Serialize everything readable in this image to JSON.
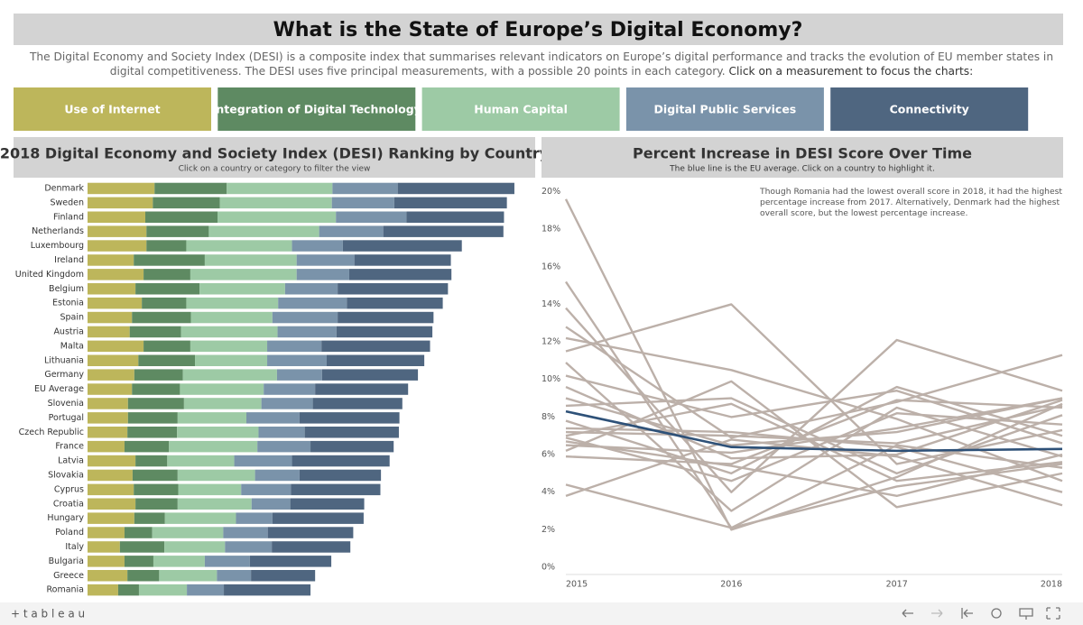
{
  "header": {
    "title": "What is the State of Europe’s Digital Economy?",
    "description": "The Digital Economy and Society Index (DESI) is a composite index that summarises relevant indicators on Europe’s digital performance and tracks the evolution of EU member states in digital competitiveness. The DESI uses five principal measurements, with a possible 20 points in each category.",
    "instruction": "Click on a measurement to focus the charts:"
  },
  "chart_data": [
    {
      "type": "bar",
      "orientation": "horizontal",
      "stacked": true,
      "title": "2018 Digital Economy and Society Index (DESI) Ranking by Country",
      "subtitle": "Click on a country or category to filter the view",
      "xlim": [
        0,
        80
      ],
      "categories": [
        "Denmark",
        "Sweden",
        "Finland",
        "Netherlands",
        "Luxembourg",
        "Ireland",
        "United Kingdom",
        "Belgium",
        "Estonia",
        "Spain",
        "Austria",
        "Malta",
        "Lithuania",
        "Germany",
        "EU Average",
        "Slovenia",
        "Portugal",
        "Czech Republic",
        "France",
        "Latvia",
        "Slovakia",
        "Cyprus",
        "Croatia",
        "Hungary",
        "Poland",
        "Italy",
        "Bulgaria",
        "Greece",
        "Romania"
      ],
      "series": [
        {
          "name": "Use of Internet",
          "color": "#bdb65b",
          "values": [
            11.6,
            11.3,
            10.0,
            10.2,
            10.2,
            8.0,
            9.7,
            8.3,
            9.4,
            7.7,
            7.3,
            9.7,
            8.8,
            8.1,
            7.7,
            7.0,
            7.0,
            6.9,
            6.4,
            8.3,
            7.8,
            8.0,
            8.3,
            8.1,
            6.4,
            5.6,
            6.4,
            6.9,
            5.3
          ]
        },
        {
          "name": "Integration of Digital Technology",
          "color": "#5e8a62",
          "values": [
            12.5,
            11.6,
            12.5,
            10.8,
            6.9,
            12.3,
            8.1,
            11.1,
            7.7,
            10.2,
            8.9,
            8.1,
            9.8,
            8.4,
            8.3,
            9.7,
            8.6,
            8.6,
            7.7,
            5.5,
            7.8,
            7.7,
            7.3,
            5.3,
            4.8,
            7.7,
            5.0,
            5.5,
            3.6
          ]
        },
        {
          "name": "Human Capital",
          "color": "#9dcaa5",
          "values": [
            18.3,
            19.4,
            20.5,
            19.1,
            18.3,
            15.9,
            18.4,
            14.8,
            15.9,
            14.1,
            16.7,
            13.3,
            12.5,
            16.3,
            14.5,
            13.4,
            11.9,
            14.1,
            15.3,
            11.6,
            13.4,
            10.9,
            12.8,
            12.3,
            12.3,
            10.5,
            8.9,
            10.0,
            8.3
          ]
        },
        {
          "name": "Digital Public Services",
          "color": "#7a93aa",
          "values": [
            11.3,
            10.8,
            12.2,
            11.1,
            8.8,
            10.0,
            9.1,
            9.1,
            11.9,
            11.3,
            10.2,
            9.4,
            10.3,
            7.8,
            8.9,
            8.9,
            9.2,
            8.0,
            9.2,
            10.0,
            7.7,
            8.6,
            6.7,
            6.3,
            7.7,
            8.1,
            7.8,
            5.9,
            6.4
          ]
        },
        {
          "name": "Connectivity",
          "color": "#4f6680",
          "values": [
            20.2,
            19.5,
            16.9,
            20.8,
            20.6,
            16.7,
            17.7,
            19.1,
            16.6,
            16.6,
            16.6,
            18.8,
            16.9,
            16.6,
            16.1,
            15.5,
            17.3,
            16.3,
            14.4,
            16.9,
            14.1,
            15.5,
            12.8,
            15.8,
            14.8,
            13.6,
            14.1,
            11.1,
            15.0
          ]
        }
      ]
    },
    {
      "type": "line",
      "title": "Percent Increase in DESI Score Over Time",
      "subtitle": "The blue line is the EU average. Click on a country to highlight it.",
      "annotation": "Though Romania had the lowest overall score in 2018, it had the highest percentage increase from 2017. Alternatively, Denmark had the highest overall score, but the lowest percentage increase.",
      "x": [
        2015,
        2016,
        2017,
        2018
      ],
      "xlim": [
        2015,
        2018
      ],
      "xticks": [
        2015,
        2016,
        2017,
        2018
      ],
      "ylim": [
        0,
        20.6
      ],
      "yticks": [
        {
          "value": 0,
          "label": "0%"
        },
        {
          "value": 2,
          "label": "2%"
        },
        {
          "value": 4,
          "label": "4%"
        },
        {
          "value": 6,
          "label": "6%"
        },
        {
          "value": 8,
          "label": "8%"
        },
        {
          "value": 10,
          "label": "10%"
        },
        {
          "value": 12,
          "label": "12%"
        },
        {
          "value": 14,
          "label": "14%"
        },
        {
          "value": 16,
          "label": "16%"
        },
        {
          "value": 18,
          "label": "18%"
        },
        {
          "value": 20,
          "label": "20%"
        }
      ],
      "series": [
        {
          "color": "#bcb0a9",
          "values": [
            19.6,
            2.0,
            4.8,
            8.7
          ]
        },
        {
          "color": "#bcb0a9",
          "values": [
            15.2,
            2.1,
            6.5,
            5.3
          ]
        },
        {
          "color": "#bcb0a9",
          "values": [
            13.8,
            4.0,
            12.1,
            9.4
          ]
        },
        {
          "color": "#bcb0a9",
          "values": [
            12.8,
            6.9,
            8.8,
            11.3
          ]
        },
        {
          "color": "#bcb0a9",
          "values": [
            12.2,
            10.5,
            7.9,
            4.6
          ]
        },
        {
          "color": "#bcb0a9",
          "values": [
            11.5,
            14.0,
            5.5,
            7.3
          ]
        },
        {
          "color": "#bcb0a9",
          "values": [
            10.9,
            3.0,
            8.5,
            5.9
          ]
        },
        {
          "color": "#bcb0a9",
          "values": [
            10.2,
            8.0,
            9.4,
            6.6
          ]
        },
        {
          "color": "#bcb0a9",
          "values": [
            9.6,
            5.8,
            6.0,
            8.9
          ]
        },
        {
          "color": "#bcb0a9",
          "values": [
            9.0,
            6.5,
            7.2,
            9.0
          ]
        },
        {
          "color": "#bcb0a9",
          "values": [
            8.6,
            9.0,
            5.0,
            8.1
          ]
        },
        {
          "color": "#bcb0a9",
          "values": [
            7.8,
            5.0,
            9.6,
            7.0
          ]
        },
        {
          "color": "#bcb0a9",
          "values": [
            7.4,
            7.2,
            6.4,
            4.0
          ]
        },
        {
          "color": "#bcb0a9",
          "values": [
            7.0,
            8.7,
            4.6,
            5.6
          ]
        },
        {
          "color": "#bcb0a9",
          "values": [
            6.9,
            4.6,
            8.2,
            7.6
          ]
        },
        {
          "color": "#bcb0a9",
          "values": [
            6.7,
            5.4,
            3.8,
            6.0
          ]
        },
        {
          "color": "#bcb0a9",
          "values": [
            6.5,
            6.1,
            7.4,
            9.0
          ]
        },
        {
          "color": "#bcb0a9",
          "values": [
            6.2,
            9.9,
            3.2,
            5.0
          ]
        },
        {
          "color": "#bcb0a9",
          "values": [
            5.9,
            5.5,
            8.9,
            8.5
          ]
        },
        {
          "color": "#bcb0a9",
          "values": [
            4.4,
            2.1,
            4.3,
            5.5
          ]
        },
        {
          "color": "#bcb0a9",
          "values": [
            3.8,
            6.8,
            5.9,
            3.3
          ]
        },
        {
          "color": "#bcb0a9",
          "values": [
            7.2,
            7.0,
            6.6,
            8.6
          ]
        },
        {
          "color": "#2e5178",
          "values": [
            8.3,
            6.4,
            6.2,
            6.3
          ]
        }
      ]
    }
  ],
  "footer": {
    "brand": "+ t a b l e a u"
  }
}
